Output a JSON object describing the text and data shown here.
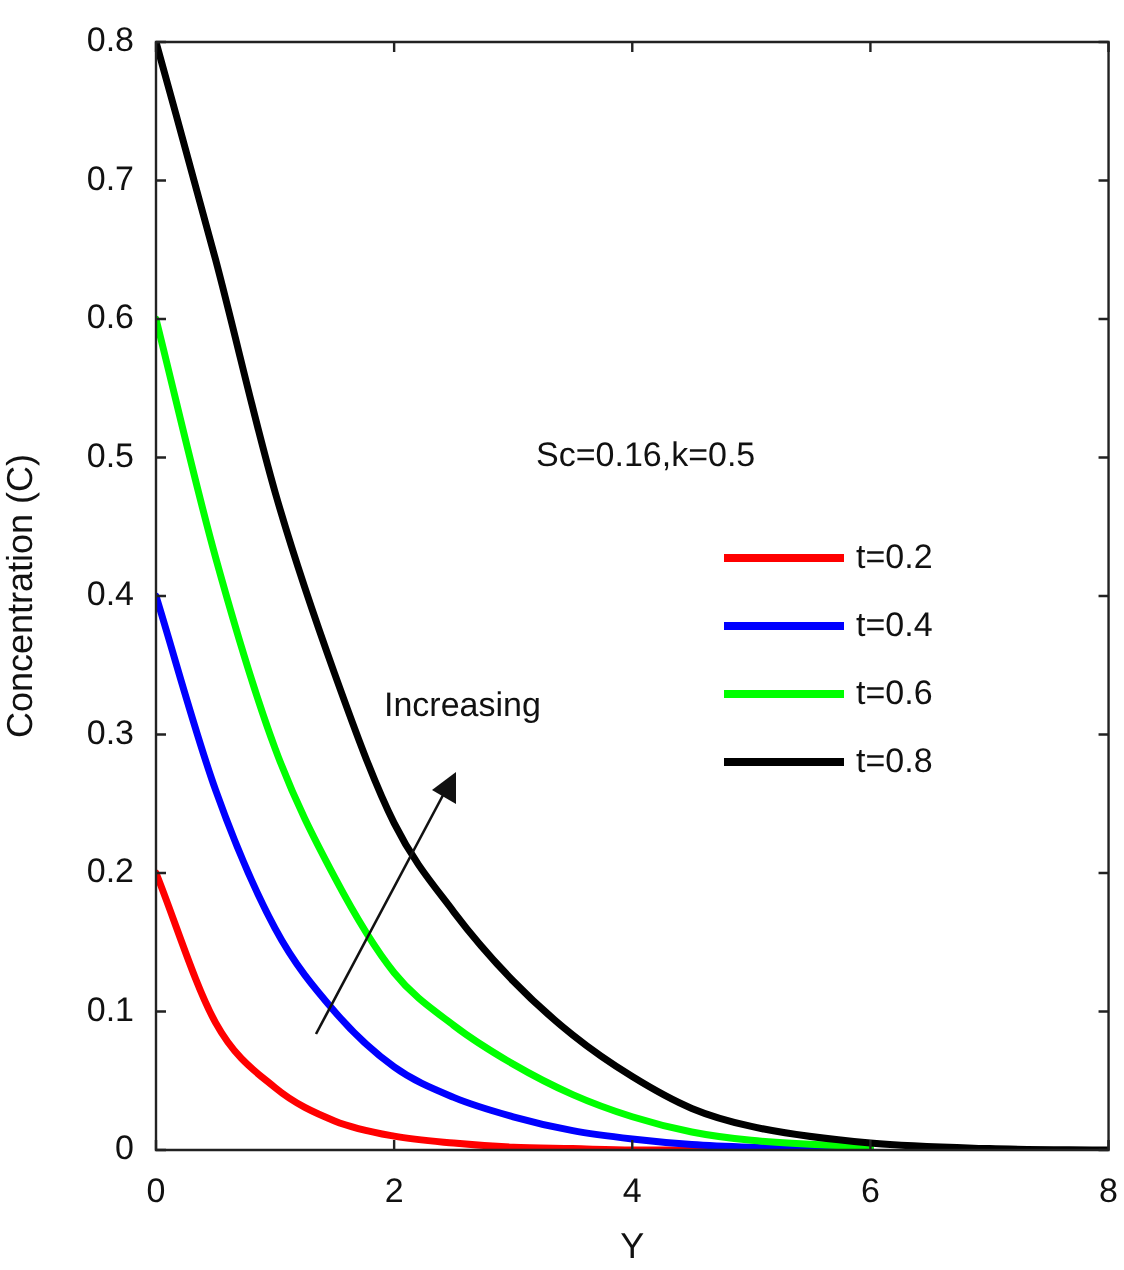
{
  "chart_data": {
    "type": "line",
    "xlabel": "Y",
    "ylabel": "Concentration (C)",
    "xlim": [
      0,
      8
    ],
    "ylim": [
      0,
      0.8
    ],
    "xticks": [
      0,
      2,
      4,
      6,
      8
    ],
    "yticks": [
      0,
      0.1,
      0.2,
      0.3,
      0.4,
      0.5,
      0.6,
      0.7,
      0.8
    ],
    "grid": false,
    "legend": "right",
    "marker": "none",
    "line_style": "solid",
    "x": [
      0,
      0.5,
      1,
      1.5,
      2,
      2.5,
      3,
      3.5,
      4,
      4.5,
      5,
      6,
      7,
      8
    ],
    "series": [
      {
        "name": "t=0.2",
        "color": "#ff0000",
        "values": [
          0.2,
          0.092,
          0.045,
          0.021,
          0.01,
          0.005,
          0.002,
          0.001,
          0,
          0,
          0,
          0,
          null,
          null
        ]
      },
      {
        "name": "t=0.4",
        "color": "#0000ff",
        "values": [
          0.4,
          0.26,
          0.16,
          0.1,
          0.06,
          0.038,
          0.024,
          0.014,
          0.008,
          0.004,
          0.002,
          0,
          null,
          null
        ]
      },
      {
        "name": "t=0.6",
        "color": "#00ff00",
        "values": [
          0.6,
          0.428,
          0.29,
          0.197,
          0.128,
          0.09,
          0.062,
          0.04,
          0.024,
          0.013,
          0.007,
          0.002,
          null,
          null
        ]
      },
      {
        "name": "t=0.8",
        "color": "#000000",
        "values": [
          0.8,
          0.643,
          0.475,
          0.344,
          0.236,
          0.172,
          0.122,
          0.083,
          0.053,
          0.03,
          0.017,
          0.005,
          0.001,
          0
        ]
      }
    ],
    "annotations": [
      "Sc=0.16,k=0.5",
      "Increasing"
    ]
  }
}
